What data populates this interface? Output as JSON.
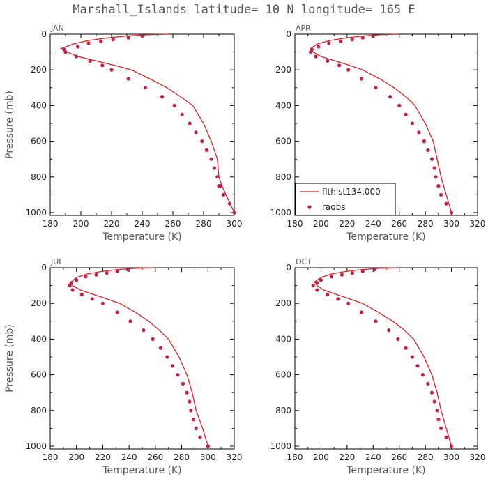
{
  "figure": {
    "title": "Marshall_Islands  latitude= 10 N longitude= 165 E",
    "colors": {
      "model_line": "#e02020",
      "obs_points": "#c41e4a",
      "axes": "#000000"
    }
  },
  "chart_data": [
    {
      "type": "line",
      "panel": "JAN",
      "xlabel": "Temperature (K)",
      "ylabel": "Pressure (mb)",
      "xlim": [
        180,
        300
      ],
      "xticks": [
        180,
        200,
        220,
        240,
        260,
        280,
        300
      ],
      "ylim": [
        1000,
        0
      ],
      "yticks": [
        0,
        200,
        400,
        600,
        800,
        1000
      ],
      "series": [
        {
          "kind": "line",
          "x": [
            257,
            243,
            230,
            218,
            205,
            195,
            187,
            191,
            198,
            210,
            222,
            233,
            245,
            256,
            265,
            273,
            280,
            285,
            289,
            290,
            292,
            296,
            300
          ],
          "y": [
            0,
            3,
            10,
            20,
            35,
            55,
            80,
            100,
            125,
            150,
            175,
            200,
            250,
            300,
            350,
            400,
            500,
            600,
            700,
            800,
            850,
            925,
            1000
          ]
        },
        {
          "kind": "points",
          "x": [
            240,
            231,
            221,
            213,
            205,
            198,
            189,
            190,
            197,
            206,
            214,
            220,
            231,
            242,
            253,
            261,
            266,
            271,
            275,
            279,
            282,
            285,
            287,
            289,
            290,
            290,
            291,
            293,
            297,
            300
          ],
          "y": [
            10,
            20,
            30,
            40,
            50,
            70,
            85,
            100,
            125,
            150,
            175,
            200,
            250,
            300,
            350,
            400,
            450,
            500,
            550,
            600,
            650,
            700,
            750,
            800,
            850,
            850,
            850,
            900,
            950,
            1000
          ]
        }
      ]
    },
    {
      "type": "line",
      "panel": "APR",
      "xlabel": "Temperature (K)",
      "ylabel": "",
      "xlim": [
        180,
        320
      ],
      "xticks": [
        180,
        200,
        220,
        240,
        260,
        280,
        300,
        320
      ],
      "ylim": [
        1000,
        0
      ],
      "yticks": [
        0,
        200,
        400,
        600,
        800,
        1000
      ],
      "legend": {
        "position": "bottom-left",
        "line_label": "flthist134.000",
        "points_label": "raobs"
      },
      "series": [
        {
          "name": "flthist134.000",
          "kind": "line",
          "x": [
            258,
            245,
            232,
            220,
            207,
            197,
            192,
            194,
            200,
            211,
            222,
            232,
            245,
            256,
            265,
            272,
            280,
            286,
            289,
            292,
            296,
            300
          ],
          "y": [
            0,
            3,
            10,
            20,
            35,
            55,
            80,
            100,
            125,
            150,
            175,
            200,
            250,
            300,
            350,
            400,
            500,
            600,
            700,
            800,
            900,
            1000
          ]
        },
        {
          "name": "raobs",
          "kind": "points",
          "x": [
            240,
            232,
            224,
            215,
            206,
            198,
            193,
            192,
            196,
            205,
            214,
            221,
            231,
            242,
            253,
            260,
            265,
            270,
            275,
            279,
            282,
            285,
            287,
            288,
            290,
            292,
            296,
            300
          ],
          "y": [
            10,
            20,
            30,
            40,
            50,
            70,
            85,
            100,
            125,
            150,
            175,
            200,
            250,
            300,
            350,
            400,
            450,
            500,
            550,
            600,
            650,
            700,
            750,
            800,
            850,
            900,
            950,
            1000
          ]
        }
      ]
    },
    {
      "type": "line",
      "panel": "JUL",
      "xlabel": "Temperature (K)",
      "ylabel": "Pressure (mb)",
      "xlim": [
        180,
        320
      ],
      "xticks": [
        180,
        200,
        220,
        240,
        260,
        280,
        300,
        320
      ],
      "ylim": [
        1000,
        0
      ],
      "yticks": [
        0,
        200,
        400,
        600,
        800,
        1000
      ],
      "series": [
        {
          "kind": "line",
          "x": [
            258,
            245,
            232,
            220,
            208,
            200,
            196,
            197,
            203,
            213,
            223,
            233,
            245,
            255,
            263,
            270,
            278,
            284,
            288,
            291,
            296,
            300
          ],
          "y": [
            0,
            3,
            10,
            20,
            35,
            55,
            80,
            100,
            125,
            150,
            175,
            200,
            250,
            300,
            350,
            400,
            500,
            600,
            700,
            800,
            900,
            1000
          ]
        },
        {
          "kind": "points",
          "x": [
            239,
            231,
            223,
            215,
            207,
            200,
            196,
            195,
            197,
            204,
            212,
            220,
            231,
            241,
            251,
            258,
            264,
            269,
            273,
            277,
            281,
            284,
            286,
            287,
            289,
            291,
            294,
            300
          ],
          "y": [
            10,
            20,
            30,
            40,
            50,
            70,
            85,
            100,
            125,
            150,
            175,
            200,
            250,
            300,
            350,
            400,
            450,
            500,
            550,
            600,
            650,
            700,
            750,
            800,
            850,
            900,
            950,
            1000
          ]
        }
      ]
    },
    {
      "type": "line",
      "panel": "OCT",
      "xlabel": "Temperature (K)",
      "ylabel": "",
      "xlim": [
        180,
        320
      ],
      "xticks": [
        180,
        200,
        220,
        240,
        260,
        280,
        300,
        320
      ],
      "ylim": [
        1000,
        0
      ],
      "yticks": [
        0,
        200,
        400,
        600,
        800,
        1000
      ],
      "series": [
        {
          "kind": "line",
          "x": [
            258,
            245,
            232,
            220,
            208,
            200,
            195,
            197,
            202,
            212,
            222,
            232,
            244,
            255,
            264,
            271,
            279,
            285,
            289,
            292,
            296,
            300
          ],
          "y": [
            0,
            3,
            10,
            20,
            35,
            55,
            80,
            100,
            125,
            150,
            175,
            200,
            250,
            300,
            350,
            400,
            500,
            600,
            700,
            800,
            900,
            1000
          ]
        },
        {
          "kind": "points",
          "x": [
            241,
            232,
            224,
            216,
            208,
            200,
            197,
            194,
            197,
            205,
            213,
            221,
            231,
            242,
            252,
            259,
            265,
            270,
            274,
            278,
            282,
            285,
            287,
            289,
            290,
            292,
            296,
            300
          ],
          "y": [
            10,
            20,
            30,
            40,
            50,
            70,
            85,
            100,
            125,
            150,
            175,
            200,
            250,
            300,
            350,
            400,
            450,
            500,
            550,
            600,
            650,
            700,
            750,
            800,
            850,
            900,
            950,
            1000
          ]
        }
      ]
    }
  ]
}
